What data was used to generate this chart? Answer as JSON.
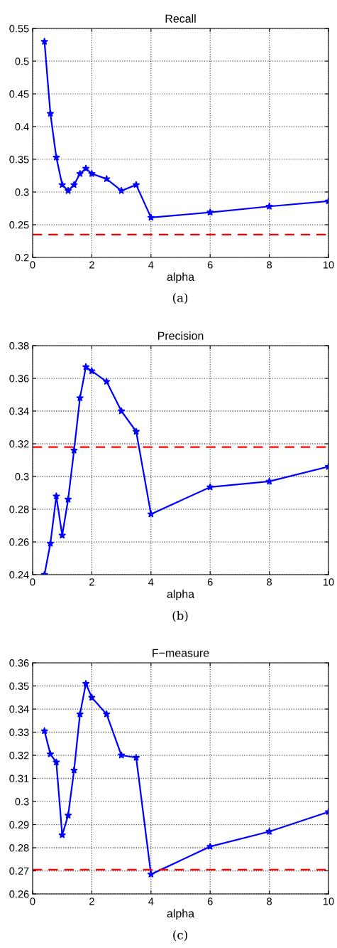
{
  "chart_data": [
    {
      "type": "line",
      "title": "Recall",
      "xlabel": "alpha",
      "annotations": [
        "(a)"
      ],
      "x": [
        0.4,
        0.6,
        0.8,
        1.0,
        1.2,
        1.4,
        1.6,
        1.8,
        2.0,
        2.5,
        3.0,
        3.5,
        4,
        6,
        8,
        10
      ],
      "series": [
        {
          "color": "#0000ff",
          "values": [
            0.53,
            0.42,
            0.353,
            0.311,
            0.302,
            0.311,
            0.328,
            0.336,
            0.328,
            0.32,
            0.302,
            0.311,
            0.261,
            0.269,
            0.278,
            0.286
          ]
        }
      ],
      "ref_lines": [
        {
          "axis": "y",
          "value": 0.235,
          "color": "#ff0000",
          "line_style": "dashed"
        }
      ],
      "xlim": [
        0,
        10
      ],
      "xticks": [
        0,
        2,
        4,
        6,
        8,
        10
      ],
      "ylim": [
        0.2,
        0.55
      ],
      "yticks": [
        0.2,
        0.25,
        0.3,
        0.35,
        0.4,
        0.45,
        0.5,
        0.55
      ],
      "grid": true,
      "marker": "star",
      "line_style": "solid"
    },
    {
      "type": "line",
      "title": "Precision",
      "xlabel": "alpha",
      "annotations": [
        "(b)"
      ],
      "x": [
        0.4,
        0.6,
        0.8,
        1.0,
        1.2,
        1.4,
        1.6,
        1.8,
        2.0,
        2.5,
        3.0,
        3.5,
        4,
        6,
        8,
        10
      ],
      "series": [
        {
          "color": "#0000ff",
          "values": [
            0.24,
            0.259,
            0.288,
            0.264,
            0.286,
            0.316,
            0.348,
            0.367,
            0.3645,
            0.358,
            0.34,
            0.3275,
            0.277,
            0.2935,
            0.297,
            0.306
          ]
        }
      ],
      "ref_lines": [
        {
          "axis": "y",
          "value": 0.318,
          "color": "#ff0000",
          "line_style": "dashed"
        }
      ],
      "xlim": [
        0,
        10
      ],
      "xticks": [
        0,
        2,
        4,
        6,
        8,
        10
      ],
      "ylim": [
        0.24,
        0.38
      ],
      "yticks": [
        0.24,
        0.26,
        0.28,
        0.3,
        0.32,
        0.34,
        0.36,
        0.38
      ],
      "grid": true,
      "marker": "star",
      "line_style": "solid"
    },
    {
      "type": "line",
      "title": "F−measure",
      "xlabel": "alpha",
      "annotations": [
        "(c)"
      ],
      "x": [
        0.4,
        0.6,
        0.8,
        1.0,
        1.2,
        1.4,
        1.6,
        1.8,
        2.0,
        2.5,
        3.0,
        3.5,
        4,
        6,
        8,
        10
      ],
      "series": [
        {
          "color": "#0000ff",
          "values": [
            0.3305,
            0.3205,
            0.317,
            0.2855,
            0.294,
            0.3135,
            0.3378,
            0.351,
            0.345,
            0.3378,
            0.32,
            0.319,
            0.2685,
            0.2805,
            0.287,
            0.2955
          ]
        }
      ],
      "ref_lines": [
        {
          "axis": "y",
          "value": 0.2705,
          "color": "#ff0000",
          "line_style": "dashed"
        }
      ],
      "xlim": [
        0,
        10
      ],
      "xticks": [
        0,
        2,
        4,
        6,
        8,
        10
      ],
      "ylim": [
        0.26,
        0.36
      ],
      "yticks": [
        0.26,
        0.27,
        0.28,
        0.29,
        0.3,
        0.31,
        0.32,
        0.33,
        0.34,
        0.35,
        0.36
      ],
      "grid": true,
      "marker": "star",
      "line_style": "solid"
    }
  ]
}
